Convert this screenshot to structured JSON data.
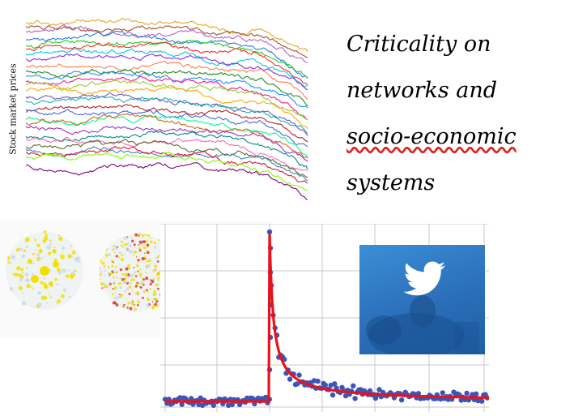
{
  "stocks_panel": {
    "ylabel": "Stock market prices",
    "series_colors": [
      "#e6a823",
      "#a0522d",
      "#c060c0",
      "#2a7de1",
      "#22cc22",
      "#ff2a2a",
      "#00c8e0",
      "#8a2be2",
      "#ff7f50",
      "#228b22",
      "#1e90ff",
      "#ff1493",
      "#9acd32",
      "#ffa500",
      "#6a5acd",
      "#20b2aa",
      "#b22222",
      "#4169e1",
      "#00fa9a",
      "#d2691e",
      "#9932cc",
      "#008b8b",
      "#ff69b4",
      "#556b2f",
      "#4682b4",
      "#dc143c",
      "#7fff00",
      "#800080"
    ]
  },
  "title": {
    "line1": "Criticality on",
    "line2": "networks and",
    "line3": "socio-economic",
    "line4": "systems"
  },
  "network_panel": {
    "snapshots": 3,
    "colors": [
      "#f0e000",
      "#cfd8e6",
      "#3a4a9a",
      "#6b8e23",
      "#e63333"
    ]
  },
  "decay_panel": {
    "point_color": "#3b55b8",
    "fit_color": "#e8121b",
    "grid_color": "#c8c8c8"
  },
  "twitter_panel": {
    "logo": "twitter-bird-icon",
    "bg_color": "#2b6fb9"
  }
}
